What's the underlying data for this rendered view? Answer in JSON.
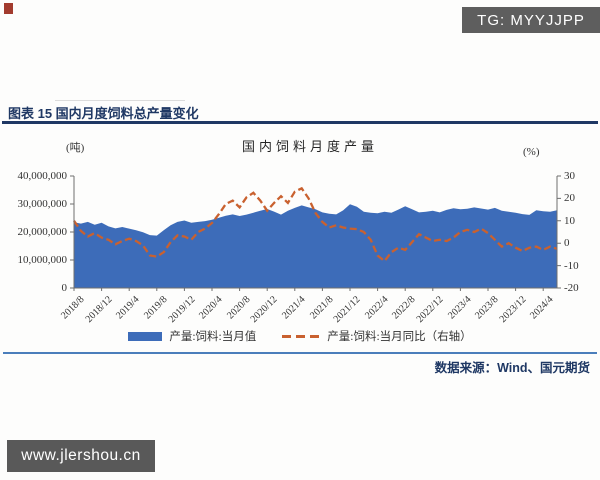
{
  "badges": {
    "tg_label": "TG: MYYJJPP",
    "watermark": "www.jlershou.cn"
  },
  "header": {
    "title": "图表 15 国内月度饲料总产量变化"
  },
  "source": {
    "text": "数据来源：Wind、国元期货"
  },
  "colors": {
    "area": "#3d6cb9",
    "line": "#c9612f",
    "navy": "#1f3864",
    "divider": "#4a7ebb",
    "badge_bg": "#5e5e5e",
    "watermark_bg": "#595959",
    "red_mark": "#a23b2e",
    "axis": "#6e6e6e"
  },
  "chart_data": {
    "type": "area+line",
    "title": "国内饲料月度产量",
    "legend_position": "bottom",
    "grid": false,
    "left_axis": {
      "unit": "(吨)",
      "min": 0,
      "max": 40000000,
      "tick_labels": [
        "40,000,000",
        "30,000,000",
        "20,000,000",
        "10,000,000",
        "0"
      ]
    },
    "right_axis": {
      "unit": "(%)",
      "min": -20,
      "max": 30,
      "tick_labels": [
        "30",
        "20",
        "10",
        "0",
        "-10",
        "-20"
      ]
    },
    "x": {
      "start": "2018/8",
      "end": "2024/6",
      "interval": "monthly",
      "tick_labels": [
        "2018/8",
        "2018/12",
        "2019/4",
        "2019/8",
        "2019/12",
        "2020/4",
        "2020/8",
        "2020/12",
        "2021/4",
        "2021/8",
        "2021/12",
        "2022/4",
        "2022/8",
        "2022/12",
        "2023/4",
        "2023/8",
        "2023/12",
        "2024/4"
      ],
      "ticks_every_n_points": 4
    },
    "series": [
      {
        "name": "产量:饲料:当月值",
        "type": "area",
        "axis": "left",
        "color": "#3d6cb9",
        "values": [
          23500000,
          23000000,
          23600000,
          22600000,
          23300000,
          22000000,
          21300000,
          21800000,
          21200000,
          20600000,
          19900000,
          18900000,
          18700000,
          20600000,
          22400000,
          23600000,
          24100000,
          23300000,
          23600000,
          23900000,
          24400000,
          25100000,
          25800000,
          26300000,
          25700000,
          26200000,
          26900000,
          27600000,
          28200000,
          27300000,
          26200000,
          27600000,
          28600000,
          29500000,
          28800000,
          28100000,
          27000000,
          26500000,
          26300000,
          27700000,
          29900000,
          29000000,
          27200000,
          26900000,
          26700000,
          27200000,
          26900000,
          28000000,
          29200000,
          28100000,
          27000000,
          27200000,
          27600000,
          27000000,
          27900000,
          28500000,
          28100000,
          28300000,
          28800000,
          28400000,
          28000000,
          28600000,
          27600000,
          27200000,
          26900000,
          26400000,
          26100000,
          27800000,
          27400000,
          27200000,
          27800000
        ]
      },
      {
        "name": "产量:饲料:当月同比（右轴）",
        "type": "dashed_line",
        "axis": "right",
        "color": "#c9612f",
        "values": [
          10,
          5.5,
          3,
          4.5,
          2.5,
          1.5,
          -0.5,
          1,
          2,
          1,
          -1,
          -5.5,
          -6,
          -4,
          0.5,
          3.5,
          3,
          1.5,
          5,
          6.5,
          9,
          13,
          17.5,
          19,
          16,
          20.5,
          22.5,
          19,
          14.5,
          18,
          21,
          18,
          23,
          24.5,
          20,
          13.5,
          9.5,
          7,
          8,
          7,
          6.5,
          6.3,
          5,
          1.5,
          -5.5,
          -8,
          -4,
          -2,
          -3,
          0.5,
          4,
          2.5,
          1,
          1.5,
          1,
          2.5,
          5,
          6,
          5,
          6.5,
          4.5,
          1.5,
          -1.5,
          0,
          -2,
          -3.5,
          -2,
          -1.5,
          -3,
          -1.5,
          -2.5
        ]
      }
    ]
  }
}
